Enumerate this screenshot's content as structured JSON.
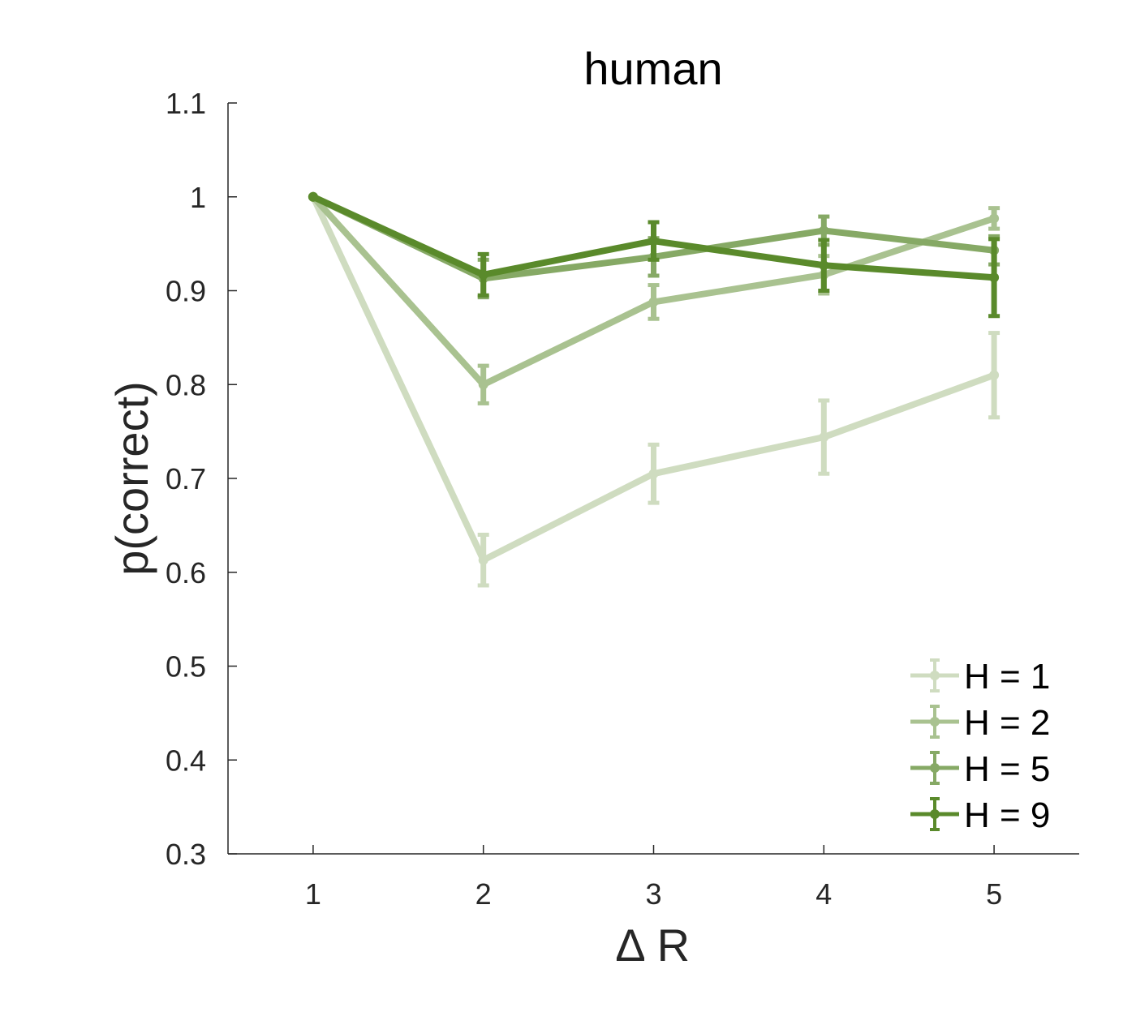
{
  "chart_data": {
    "type": "line",
    "title": "human",
    "xlabel": "∆ R",
    "ylabel": "p(correct)",
    "x": [
      1,
      2,
      3,
      4,
      5
    ],
    "xlim": [
      0.5,
      5.5
    ],
    "ylim": [
      0.3,
      1.1
    ],
    "xticks": [
      "1",
      "2",
      "3",
      "4",
      "5"
    ],
    "yticks": [
      "0.3",
      "0.4",
      "0.5",
      "0.6",
      "0.7",
      "0.8",
      "0.9",
      "1",
      "1.1"
    ],
    "grid": false,
    "legend_position": "bottom-right",
    "series": [
      {
        "name": "H = 1",
        "color": "#cfdcc0",
        "values": [
          1.0,
          0.613,
          0.705,
          0.744,
          0.81
        ],
        "errors": [
          0.0,
          0.027,
          0.031,
          0.039,
          0.045
        ]
      },
      {
        "name": "H = 2",
        "color": "#a9c290",
        "values": [
          1.0,
          0.8,
          0.888,
          0.917,
          0.977
        ],
        "errors": [
          0.0,
          0.02,
          0.018,
          0.02,
          0.011
        ]
      },
      {
        "name": "H = 5",
        "color": "#86a965",
        "values": [
          1.0,
          0.913,
          0.936,
          0.964,
          0.943
        ],
        "errors": [
          0.0,
          0.02,
          0.02,
          0.015,
          0.015
        ]
      },
      {
        "name": "H = 9",
        "color": "#5a8a2b",
        "values": [
          1.0,
          0.917,
          0.953,
          0.927,
          0.914
        ],
        "errors": [
          0.0,
          0.022,
          0.02,
          0.027,
          0.041
        ]
      }
    ]
  }
}
